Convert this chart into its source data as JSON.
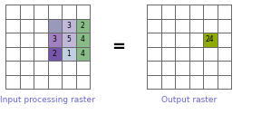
{
  "fig_width": 2.99,
  "fig_height": 1.26,
  "dpi": 100,
  "grid_rows": 6,
  "grid_cols": 6,
  "input_cells": [
    {
      "row": 1,
      "col": 3,
      "color": "#9999bb",
      "value": ""
    },
    {
      "row": 1,
      "col": 4,
      "color": "#c0b8d8",
      "value": "3"
    },
    {
      "row": 1,
      "col": 5,
      "color": "#88bb88",
      "value": "2"
    },
    {
      "row": 2,
      "col": 3,
      "color": "#a080c0",
      "value": "3"
    },
    {
      "row": 2,
      "col": 4,
      "color": "#c0b8d8",
      "value": "5"
    },
    {
      "row": 2,
      "col": 5,
      "color": "#88bb88",
      "value": "4"
    },
    {
      "row": 3,
      "col": 3,
      "color": "#7755aa",
      "value": "2"
    },
    {
      "row": 3,
      "col": 4,
      "color": "#c0d0e0",
      "value": "1"
    },
    {
      "row": 3,
      "col": 5,
      "color": "#88bb88",
      "value": "4"
    }
  ],
  "output_cell": {
    "row": 2,
    "col": 4,
    "color": "#8faa00",
    "value": "24"
  },
  "left_label": "Input processing raster",
  "right_label": "Output raster",
  "label_color": "#6666cc",
  "label_fontsize": 6.5,
  "grid_linewidth": 0.7,
  "grid_color": "#666666",
  "background_color": "#ffffff",
  "cell_value_fontsize": 5.5
}
